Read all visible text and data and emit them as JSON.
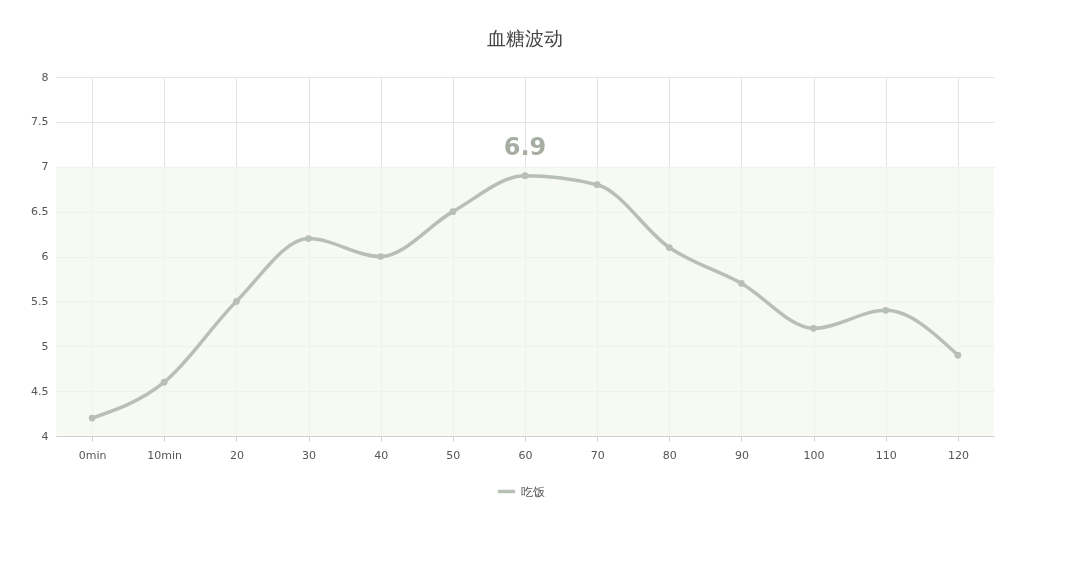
{
  "chart_data": {
    "type": "line",
    "title": "血糖波动",
    "categories": [
      "0min",
      "10min",
      "20",
      "30",
      "40",
      "50",
      "60",
      "70",
      "80",
      "90",
      "100",
      "110",
      "120"
    ],
    "series": [
      {
        "name": "吃饭",
        "color": "#b8bfb4",
        "values": [
          4.2,
          4.6,
          5.5,
          6.2,
          6.0,
          6.5,
          6.9,
          6.8,
          6.1,
          5.7,
          5.2,
          5.4,
          4.9
        ]
      }
    ],
    "ylim": [
      4,
      8
    ],
    "yticks": [
      4,
      4.5,
      5,
      5.5,
      6,
      6.5,
      7,
      7.5,
      8
    ],
    "bands": [
      {
        "axis": "y",
        "from": 4,
        "to": 7,
        "color": "#f3f8ee"
      }
    ],
    "annotations": [
      {
        "text": "6.9",
        "x": "60",
        "y": 6.9
      }
    ],
    "grid": true,
    "legend": "bottom",
    "marker": "circle",
    "line_style": "solid"
  }
}
